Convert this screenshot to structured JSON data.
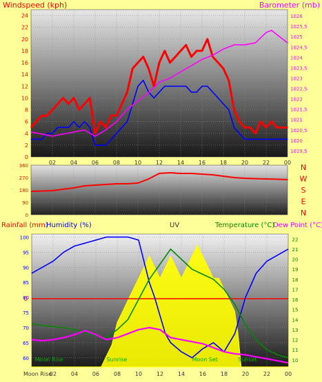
{
  "chart_data": [
    {
      "type": "line",
      "title": "",
      "left_axis": {
        "label": "Windspeed (kph)",
        "range": [
          0,
          25
        ],
        "ticks": [
          "0",
          "2",
          "4",
          "6",
          "8",
          "10",
          "12",
          "14",
          "16",
          "18",
          "20",
          "22",
          "24"
        ],
        "color": "#ff0000"
      },
      "right_axis": {
        "label": "Barometer (mb)",
        "range": [
          1019.2,
          1026.3
        ],
        "ticks": [
          "1019,5",
          "1020",
          "1020,5",
          "1021",
          "1021,5",
          "1022",
          "1022,5",
          "1023",
          "1023,5",
          "1024",
          "1024,5",
          "1025",
          "1025,5",
          "1026"
        ],
        "color": "#ff00ff"
      },
      "x_ticks": [
        "02",
        "04",
        "06",
        "08",
        "10",
        "12",
        "14",
        "16",
        "18",
        "20",
        "22",
        "00"
      ],
      "x_range": [
        0,
        24
      ],
      "grid": true,
      "series": [
        {
          "role": "gust",
          "color": "#ff0000",
          "x": [
            0,
            0.5,
            1,
            1.5,
            2,
            2.5,
            3,
            3.5,
            4,
            4.5,
            5,
            5.5,
            6,
            6.5,
            7,
            7.5,
            8,
            8.5,
            9,
            9.5,
            10,
            10.5,
            11,
            11.5,
            12,
            12.5,
            13,
            13.5,
            14,
            14.5,
            15,
            15.5,
            16,
            16.5,
            17,
            17.5,
            18,
            18.5,
            19,
            19.5,
            20,
            20.5,
            21,
            21.5,
            22,
            22.5,
            23,
            23.5,
            24
          ],
          "values": [
            5,
            6,
            7,
            7,
            8,
            9,
            10,
            9,
            10,
            8,
            9,
            10,
            4,
            6,
            5,
            7,
            7,
            9,
            11,
            15,
            16,
            17,
            15,
            12,
            16,
            18,
            16,
            17,
            18,
            19,
            17,
            18,
            18,
            20,
            17,
            16,
            15,
            13,
            8,
            6,
            5,
            5,
            4,
            6,
            5,
            6,
            5,
            5,
            5
          ]
        },
        {
          "role": "average",
          "color": "#0000ff",
          "x": [
            0,
            0.5,
            1,
            1.5,
            2,
            2.5,
            3,
            3.5,
            4,
            4.5,
            5,
            5.5,
            6,
            6.5,
            7,
            7.5,
            8,
            8.5,
            9,
            9.5,
            10,
            10.5,
            11,
            11.5,
            12,
            12.5,
            13,
            13.5,
            14,
            14.5,
            15,
            15.5,
            16,
            16.5,
            17,
            17.5,
            18,
            18.5,
            19,
            19.5,
            20,
            20.5,
            21,
            21.5,
            22,
            22.5,
            23,
            23.5,
            24
          ],
          "values": [
            3,
            3,
            3,
            4,
            4,
            5,
            5,
            5,
            6,
            5,
            6,
            5,
            2,
            2,
            2,
            3,
            4,
            5,
            6,
            9,
            12,
            13,
            11,
            10,
            11,
            12,
            12,
            12,
            12,
            12,
            11,
            11,
            12,
            12,
            11,
            10,
            9,
            8,
            5,
            4,
            3,
            3,
            3,
            3,
            3,
            3,
            3,
            3,
            3
          ]
        },
        {
          "role": "barometer",
          "axis": "right",
          "color": "#ff00ff",
          "x": [
            0,
            1,
            2,
            3,
            4,
            5,
            6,
            7,
            8,
            9,
            10,
            11,
            12,
            13,
            14,
            15,
            16,
            17,
            18,
            19,
            20,
            21,
            22,
            22.5,
            23,
            24
          ],
          "values": [
            1020.4,
            1020.3,
            1020.2,
            1020.3,
            1020.4,
            1020.5,
            1020.2,
            1020.5,
            1020.9,
            1021.5,
            1021.9,
            1022.3,
            1022.8,
            1023.0,
            1023.3,
            1023.6,
            1023.9,
            1024.1,
            1024.4,
            1024.6,
            1024.6,
            1024.7,
            1025.2,
            1025.3,
            1025.1,
            1024.7
          ]
        }
      ]
    },
    {
      "type": "line",
      "title": "",
      "left_axis": {
        "range": [
          0,
          360
        ],
        "ticks": [
          "0",
          "90",
          "180",
          "270",
          "360"
        ]
      },
      "right_labels": [
        "N",
        "W",
        "S",
        "E",
        "N"
      ],
      "x_range": [
        0,
        24
      ],
      "series": [
        {
          "role": "wind-direction",
          "color": "#ff0000",
          "x": [
            0,
            1,
            2,
            3,
            4,
            5,
            6,
            7,
            8,
            9,
            10,
            11,
            12,
            13,
            14,
            15,
            16,
            17,
            18,
            19,
            20,
            21,
            22,
            23,
            24
          ],
          "values": [
            170,
            172,
            175,
            185,
            195,
            210,
            215,
            220,
            225,
            225,
            230,
            260,
            300,
            305,
            300,
            300,
            295,
            290,
            280,
            270,
            265,
            262,
            260,
            258,
            255
          ]
        }
      ]
    },
    {
      "type": "line",
      "title": "",
      "labels": {
        "rain": "Rainfall (mm)",
        "humidity": "Humidity (%)",
        "uv": "UV",
        "temperature": "Temperature (°C)",
        "dew_point": "Dew Point (°C)"
      },
      "humidity_axis": {
        "range": [
          57,
          101
        ],
        "ticks": [
          "60",
          "65",
          "70",
          "75",
          "80",
          "85",
          "90",
          "95",
          "100"
        ]
      },
      "temperature_axis": {
        "range": [
          9.3,
          22.5
        ],
        "ticks": [
          "10",
          "11",
          "12",
          "13",
          "14",
          "15",
          "16",
          "17",
          "18",
          "19",
          "20",
          "21",
          "22"
        ]
      },
      "rain_axis_label": "0",
      "x_range": [
        0,
        24
      ],
      "x_ticks": [
        "02",
        "04",
        "06",
        "08",
        "10",
        "12",
        "14",
        "16",
        "18",
        "20",
        "22",
        "00"
      ],
      "x_tick_prefix": "Moon Rise",
      "annotations": [
        {
          "text": "Moon Rise",
          "x": 0.3
        },
        {
          "text": "Sunrise",
          "x": 7.0
        },
        {
          "text": "Moon Set",
          "x": 15.0
        },
        {
          "text": "Sunset",
          "x": 19.3
        }
      ],
      "series": [
        {
          "role": "humidity",
          "color": "#0000ff",
          "x": [
            0,
            0.5,
            1,
            2,
            3,
            4,
            5,
            6,
            7,
            8,
            9,
            10,
            11,
            11.5,
            12,
            12.5,
            13,
            14,
            15,
            16,
            17,
            18,
            19,
            20,
            21,
            22,
            23,
            24
          ],
          "values": [
            88,
            89,
            90,
            92,
            95,
            97,
            98,
            99,
            100,
            100,
            100,
            99,
            85,
            80,
            74,
            68,
            65,
            62,
            60,
            63,
            65,
            62,
            68,
            80,
            88,
            92,
            94,
            96
          ]
        },
        {
          "role": "temperature",
          "color": "#008800",
          "x": [
            0,
            1,
            2,
            3,
            4,
            5,
            6,
            7,
            8,
            9,
            10,
            11,
            12,
            13,
            14,
            15,
            16,
            17,
            18,
            19,
            20,
            21,
            22,
            23,
            24
          ],
          "values": [
            13.6,
            13.4,
            13.3,
            13.2,
            13.0,
            12.7,
            12.4,
            12.2,
            13.0,
            14.0,
            16.0,
            18.0,
            19.5,
            21.0,
            20.0,
            19.0,
            18.5,
            18.0,
            17.0,
            15.5,
            13.5,
            12.0,
            11.0,
            10.5,
            10.2
          ]
        },
        {
          "role": "dew-point",
          "color": "#ff00ff",
          "x": [
            0,
            1,
            2,
            3,
            4,
            5,
            6,
            7,
            8,
            9,
            10,
            11,
            12,
            13,
            14,
            15,
            16,
            17,
            18,
            19,
            20,
            21,
            22,
            23,
            24
          ],
          "values": [
            12.0,
            11.9,
            12.0,
            12.2,
            12.5,
            12.9,
            12.5,
            12.0,
            12.2,
            12.6,
            13.0,
            13.2,
            13.0,
            12.2,
            12.0,
            11.8,
            11.6,
            11.2,
            10.8,
            10.6,
            10.5,
            10.3,
            10.1,
            9.9,
            9.7
          ]
        },
        {
          "role": "uv-index",
          "color": "#ffff00",
          "x": [
            0,
            6.5,
            7.0,
            7.5,
            8,
            8.5,
            9,
            9.5,
            10,
            10.5,
            11,
            11.5,
            12,
            12.5,
            13,
            13.5,
            14,
            14.5,
            15,
            15.5,
            16,
            16.5,
            17,
            17.5,
            18,
            18.5,
            19,
            19.3,
            19.6,
            24
          ],
          "values": [
            0,
            0,
            1,
            2,
            4,
            5,
            6,
            7,
            8,
            9,
            10,
            9,
            8,
            9,
            10,
            9,
            8,
            9,
            10,
            11,
            10,
            9,
            8,
            8,
            7,
            6,
            5,
            3,
            0,
            0
          ]
        }
      ]
    }
  ]
}
